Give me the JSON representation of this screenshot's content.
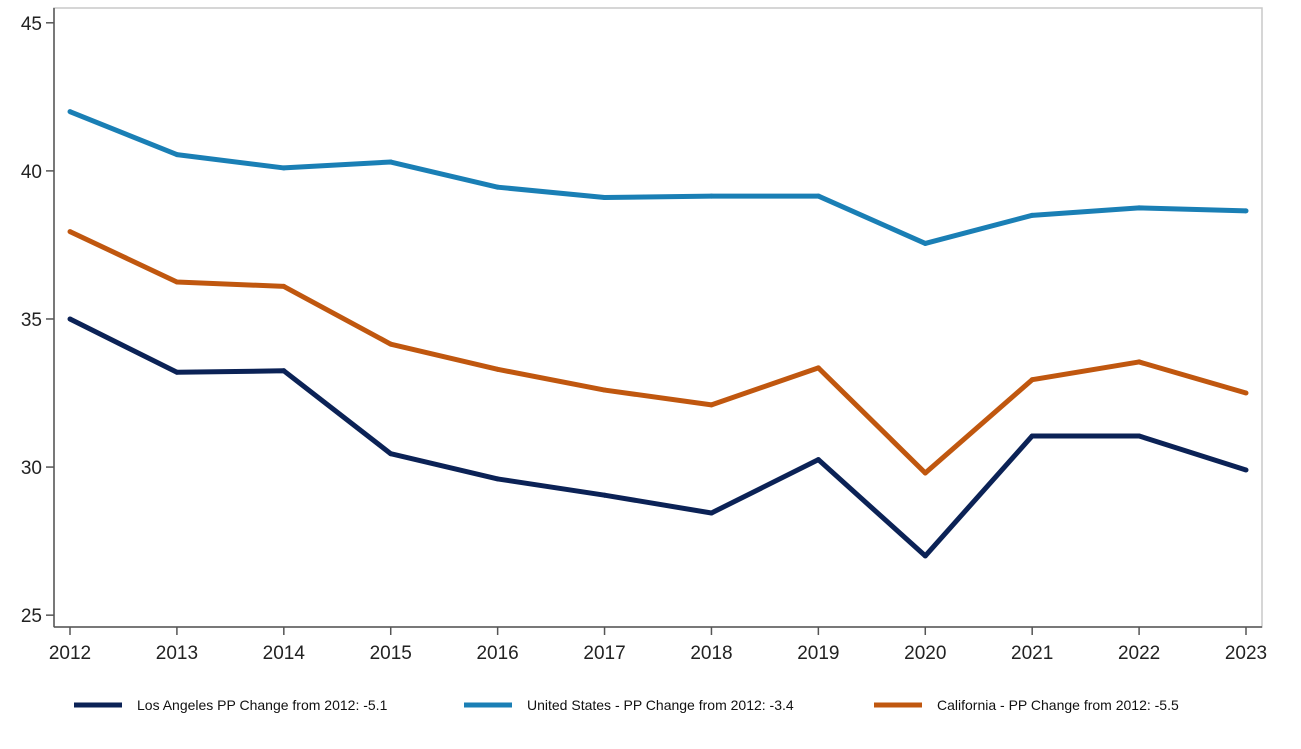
{
  "chart_data": {
    "type": "line",
    "title": "",
    "xlabel": "",
    "ylabel": "",
    "x": [
      2012,
      2013,
      2014,
      2015,
      2016,
      2017,
      2018,
      2019,
      2020,
      2021,
      2022,
      2023
    ],
    "ylim": [
      24.6,
      45.5
    ],
    "yticks": [
      25,
      30,
      35,
      40,
      45
    ],
    "grid": false,
    "legend_position": "bottom",
    "series": [
      {
        "name": "Los Angeles PP Change from 2012: -5.1",
        "color": "#0b2256",
        "values": [
          35.0,
          33.2,
          33.25,
          30.45,
          29.6,
          29.05,
          28.45,
          30.25,
          27.0,
          31.05,
          31.05,
          29.9
        ]
      },
      {
        "name": "United States - PP Change from 2012: -3.4",
        "color": "#1a7fb5",
        "values": [
          42.0,
          40.55,
          40.1,
          40.3,
          39.45,
          39.1,
          39.15,
          39.15,
          37.55,
          38.5,
          38.75,
          38.65
        ]
      },
      {
        "name": "California - PP Change from 2012: -5.5",
        "color": "#c0570f",
        "values": [
          37.95,
          36.25,
          36.1,
          34.15,
          33.3,
          32.6,
          32.1,
          33.35,
          29.8,
          32.95,
          33.55,
          32.5
        ]
      }
    ]
  }
}
